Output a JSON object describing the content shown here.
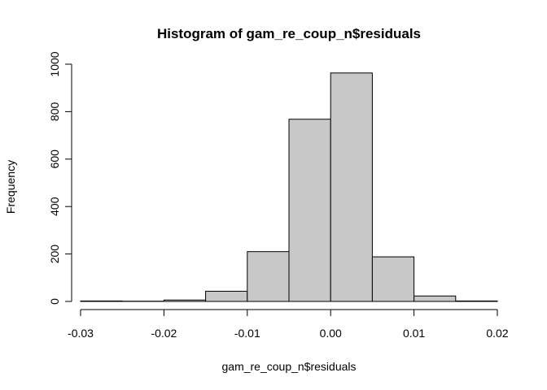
{
  "chart_data": {
    "type": "bar",
    "title": "Histogram of gam_re_coup_n$residuals",
    "xlabel": "gam_re_coup_n$residuals",
    "ylabel": "Frequency",
    "xlim": [
      -0.03,
      0.02
    ],
    "ylim": [
      0,
      1000
    ],
    "bins": [
      {
        "x0": -0.03,
        "x1": -0.025,
        "count": 2
      },
      {
        "x0": -0.025,
        "x1": -0.02,
        "count": 1
      },
      {
        "x0": -0.02,
        "x1": -0.015,
        "count": 6
      },
      {
        "x0": -0.015,
        "x1": -0.01,
        "count": 43
      },
      {
        "x0": -0.01,
        "x1": -0.005,
        "count": 210
      },
      {
        "x0": -0.005,
        "x1": 0.0,
        "count": 768
      },
      {
        "x0": 0.0,
        "x1": 0.005,
        "count": 963
      },
      {
        "x0": 0.005,
        "x1": 0.01,
        "count": 188
      },
      {
        "x0": 0.01,
        "x1": 0.015,
        "count": 23
      },
      {
        "x0": 0.015,
        "x1": 0.02,
        "count": 2
      }
    ],
    "x_ticks": [
      -0.03,
      -0.02,
      -0.01,
      0.0,
      0.01,
      0.02
    ],
    "x_tick_labels": [
      "-0.03",
      "-0.02",
      "-0.01",
      "0.00",
      "0.01",
      "0.02"
    ],
    "y_ticks": [
      0,
      200,
      400,
      600,
      800,
      1000
    ],
    "y_tick_labels": [
      "0",
      "200",
      "400",
      "600",
      "800",
      "1000"
    ],
    "grid": false,
    "colors": {
      "bar_fill": "#c8c8c8",
      "bar_stroke": "#000000"
    }
  }
}
